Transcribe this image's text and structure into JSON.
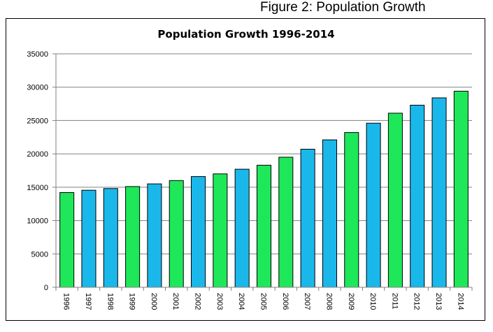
{
  "figure_caption": "Figure 2: Population Growth",
  "chart_data": {
    "type": "bar",
    "title": "Population Growth 1996-2014",
    "xlabel": "",
    "ylabel": "",
    "ylim": [
      0,
      35000
    ],
    "yticks": [
      0,
      5000,
      10000,
      15000,
      20000,
      25000,
      30000,
      35000
    ],
    "grid": true,
    "legend": "none",
    "categories": [
      "1996",
      "1997",
      "1998",
      "1999",
      "2000",
      "2001",
      "2002",
      "2003",
      "2004",
      "2005",
      "2006",
      "2007",
      "2008",
      "2009",
      "2010",
      "2011",
      "2012",
      "2013",
      "2014"
    ],
    "values": [
      14200,
      14550,
      14800,
      15100,
      15500,
      16000,
      16600,
      17000,
      17700,
      18300,
      19500,
      20700,
      22100,
      23200,
      24600,
      26100,
      27300,
      28400,
      29400
    ],
    "bar_colors": [
      "#1ee85a",
      "#1ab8ea",
      "#1ab8ea",
      "#1ee85a",
      "#1ab8ea",
      "#1ee85a",
      "#1ab8ea",
      "#1ee85a",
      "#1ab8ea",
      "#1ee85a",
      "#1ee85a",
      "#1ab8ea",
      "#1ab8ea",
      "#1ee85a",
      "#1ab8ea",
      "#1ee85a",
      "#1ab8ea",
      "#1ab8ea",
      "#1ee85a"
    ]
  }
}
